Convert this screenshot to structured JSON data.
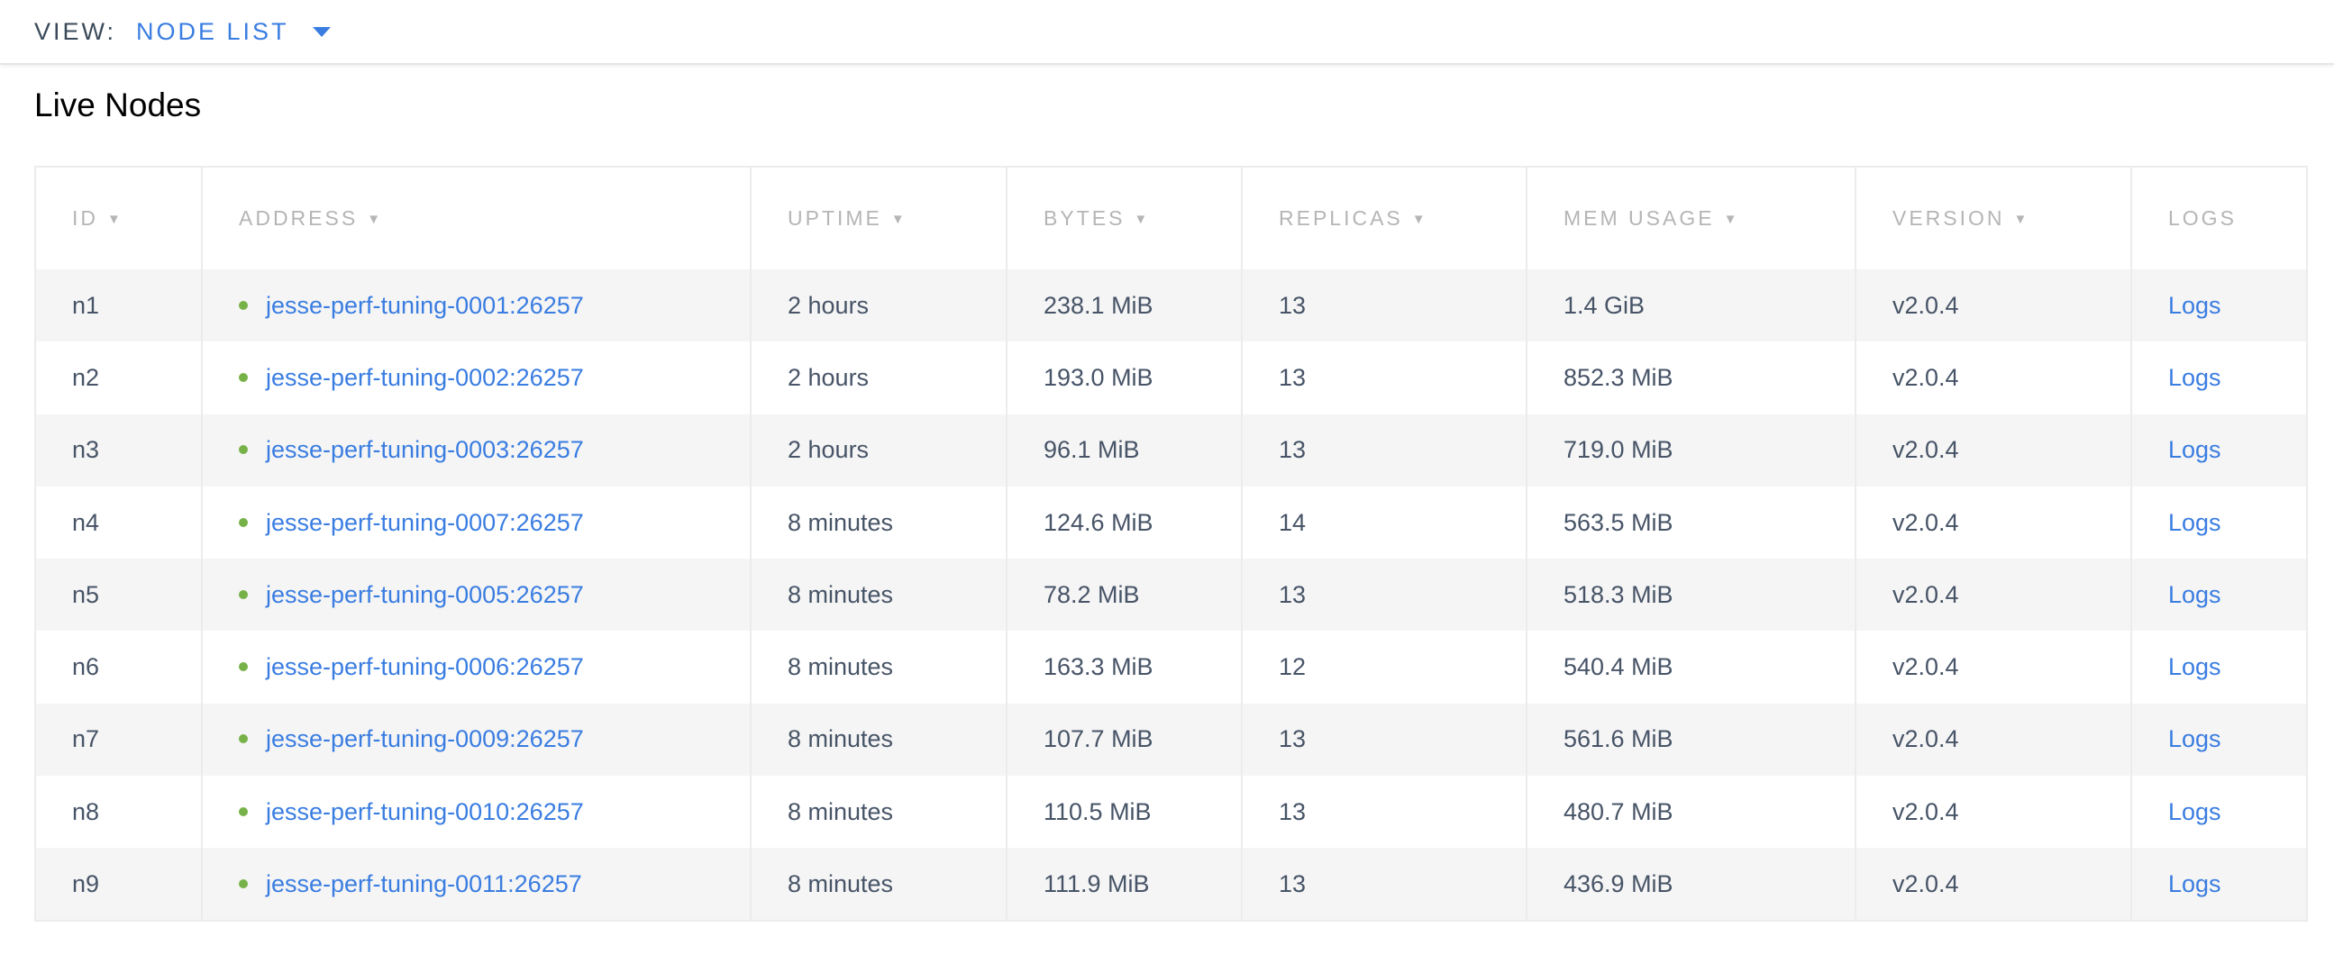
{
  "header": {
    "view_label": "VIEW:",
    "view_value": "NODE LIST"
  },
  "title": "Live Nodes",
  "columns": [
    {
      "label": "ID",
      "sortable": true
    },
    {
      "label": "ADDRESS",
      "sortable": true
    },
    {
      "label": "UPTIME",
      "sortable": true
    },
    {
      "label": "BYTES",
      "sortable": true
    },
    {
      "label": "REPLICAS",
      "sortable": true
    },
    {
      "label": "MEM USAGE",
      "sortable": true
    },
    {
      "label": "VERSION",
      "sortable": true
    },
    {
      "label": "LOGS",
      "sortable": false
    }
  ],
  "sort_glyph": "▼",
  "colors": {
    "link": "#3a7de1",
    "status_live": "#77b248"
  },
  "rows": [
    {
      "id": "n1",
      "address": "jesse-perf-tuning-0001:26257",
      "uptime": "2 hours",
      "bytes": "238.1 MiB",
      "replicas": "13",
      "mem": "1.4 GiB",
      "version": "v2.0.4",
      "logs": "Logs"
    },
    {
      "id": "n2",
      "address": "jesse-perf-tuning-0002:26257",
      "uptime": "2 hours",
      "bytes": "193.0 MiB",
      "replicas": "13",
      "mem": "852.3 MiB",
      "version": "v2.0.4",
      "logs": "Logs"
    },
    {
      "id": "n3",
      "address": "jesse-perf-tuning-0003:26257",
      "uptime": "2 hours",
      "bytes": "96.1 MiB",
      "replicas": "13",
      "mem": "719.0 MiB",
      "version": "v2.0.4",
      "logs": "Logs"
    },
    {
      "id": "n4",
      "address": "jesse-perf-tuning-0007:26257",
      "uptime": "8 minutes",
      "bytes": "124.6 MiB",
      "replicas": "14",
      "mem": "563.5 MiB",
      "version": "v2.0.4",
      "logs": "Logs"
    },
    {
      "id": "n5",
      "address": "jesse-perf-tuning-0005:26257",
      "uptime": "8 minutes",
      "bytes": "78.2 MiB",
      "replicas": "13",
      "mem": "518.3 MiB",
      "version": "v2.0.4",
      "logs": "Logs"
    },
    {
      "id": "n6",
      "address": "jesse-perf-tuning-0006:26257",
      "uptime": "8 minutes",
      "bytes": "163.3 MiB",
      "replicas": "12",
      "mem": "540.4 MiB",
      "version": "v2.0.4",
      "logs": "Logs"
    },
    {
      "id": "n7",
      "address": "jesse-perf-tuning-0009:26257",
      "uptime": "8 minutes",
      "bytes": "107.7 MiB",
      "replicas": "13",
      "mem": "561.6 MiB",
      "version": "v2.0.4",
      "logs": "Logs"
    },
    {
      "id": "n8",
      "address": "jesse-perf-tuning-0010:26257",
      "uptime": "8 minutes",
      "bytes": "110.5 MiB",
      "replicas": "13",
      "mem": "480.7 MiB",
      "version": "v2.0.4",
      "logs": "Logs"
    },
    {
      "id": "n9",
      "address": "jesse-perf-tuning-0011:26257",
      "uptime": "8 minutes",
      "bytes": "111.9 MiB",
      "replicas": "13",
      "mem": "436.9 MiB",
      "version": "v2.0.4",
      "logs": "Logs"
    }
  ]
}
